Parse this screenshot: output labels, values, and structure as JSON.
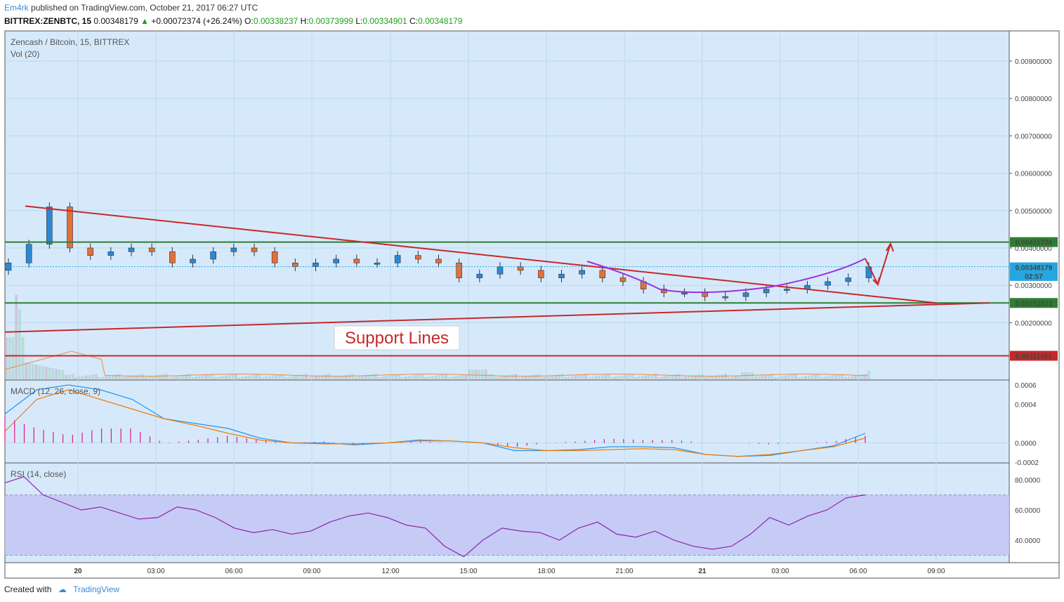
{
  "header": {
    "author": "Em4rk",
    "published_text": "published on TradingView.com, October 21, 2017 06:27 UTC",
    "symbol": "BITTREX:ZENBTC, 15",
    "last": "0.00348179",
    "change": "+0.00072374 (+26.24%)",
    "o_label": "O:",
    "o": "0.00338237",
    "h_label": "H:",
    "h": "0.00373999",
    "l_label": "L:",
    "l": "0.00334901",
    "c_label": "C:",
    "c": "0.00348179"
  },
  "main_pane": {
    "title": "Zencash / Bitcoin, 15, BITTREX",
    "vol_label": "Vol (20)",
    "annotation": "Support Lines",
    "price_labels": [
      {
        "text": "0.00415726",
        "value": 0.00415726,
        "color": "#2e7d32"
      },
      {
        "text": "0.00348179",
        "value": 0.00348179,
        "color": "#26a6e0"
      },
      {
        "text": "02:57",
        "value": 0.00325,
        "color": "#26a6e0"
      },
      {
        "text": "0.00252823",
        "value": 0.00252823,
        "color": "#2e7d32"
      },
      {
        "text": "0.00111461",
        "value": 0.00111461,
        "color": "#c62828"
      }
    ]
  },
  "macd_pane": {
    "title": "MACD (12, 26, close, 9)"
  },
  "rsi_pane": {
    "title": "RSI (14, close)"
  },
  "footer": {
    "created_with": "Created with",
    "brand": "TradingView"
  },
  "chart_data": [
    {
      "type": "candlestick",
      "title": "Zencash / Bitcoin, 15, BITTREX",
      "ylim": [
        0.001,
        0.0095
      ],
      "y_ticks": [
        "0.00900000",
        "0.00800000",
        "0.00700000",
        "0.00600000",
        "0.00500000",
        "0.00400000",
        "0.00300000",
        "0.00200000"
      ],
      "x_ticks": [
        "20",
        "03:00",
        "06:00",
        "09:00",
        "12:00",
        "15:00",
        "18:00",
        "21:00",
        "21",
        "03:00",
        "06:00",
        "09:00"
      ],
      "close_series_sampled": [
        0.0036,
        0.0041,
        0.0051,
        0.004,
        0.0038,
        0.0039,
        0.004,
        0.0039,
        0.0036,
        0.0037,
        0.0039,
        0.004,
        0.0039,
        0.0036,
        0.0035,
        0.0036,
        0.0037,
        0.0036,
        0.0036,
        0.0038,
        0.0037,
        0.0036,
        0.0032,
        0.0033,
        0.0035,
        0.0034,
        0.0032,
        0.0033,
        0.0034,
        0.0032,
        0.0031,
        0.0029,
        0.0028,
        0.0028,
        0.0027,
        0.0027,
        0.0028,
        0.0029,
        0.0029,
        0.003,
        0.0031,
        0.0032,
        0.0035
      ],
      "horizontal_levels": [
        0.00415726,
        0.00252823,
        0.00111461
      ],
      "trendline_descending": [
        [
          0,
          0.00512
        ],
        [
          1,
          0.00252823
        ]
      ],
      "trendline_ascending": [
        [
          0,
          0.00175
        ],
        [
          1,
          0.00252823
        ]
      ]
    },
    {
      "type": "line",
      "title": "MACD (12, 26, close, 9)",
      "ylim": [
        -0.0002,
        0.0006
      ],
      "y_ticks": [
        "0.0006",
        "0.0004",
        "0.0000",
        "-0.0002"
      ],
      "series": [
        {
          "values": [
            0.0003,
            0.00055,
            0.0006,
            0.00055,
            0.00045,
            0.00025,
            0.0002,
            0.00015,
            5e-05,
            0.0,
            0.0,
            -2e-05,
            0.0,
            3e-05,
            2e-05,
            0.0,
            -8e-05,
            -8e-05,
            -7e-05,
            -4e-05,
            -4e-05,
            -5e-05,
            -0.00012,
            -0.00014,
            -0.00013,
            -8e-05,
            -3e-05,
            0.0001
          ]
        },
        {
          "values": [
            0.00012,
            0.00045,
            0.00055,
            0.00045,
            0.00035,
            0.00025,
            0.00018,
            0.0001,
            3e-05,
            0.0,
            -1e-05,
            -1e-05,
            0.0,
            2e-05,
            2e-05,
            0.0,
            -5e-05,
            -8e-05,
            -8e-05,
            -7e-05,
            -6e-05,
            -7e-05,
            -0.00012,
            -0.00014,
            -0.00012,
            -8e-05,
            -4e-05,
            5e-05
          ]
        }
      ]
    },
    {
      "type": "line",
      "title": "RSI (14, close)",
      "ylim": [
        25,
        90
      ],
      "y_ticks": [
        "80.0000",
        "60.0000",
        "40.0000"
      ],
      "band": [
        30,
        70
      ],
      "series": [
        {
          "values": [
            78,
            82,
            70,
            65,
            60,
            62,
            58,
            54,
            55,
            62,
            60,
            55,
            48,
            45,
            47,
            44,
            46,
            52,
            56,
            58,
            55,
            50,
            48,
            36,
            29,
            40,
            48,
            46,
            45,
            40,
            48,
            52,
            44,
            42,
            46,
            40,
            36,
            34,
            36,
            44,
            55,
            50,
            56,
            60,
            68,
            70
          ]
        }
      ]
    }
  ]
}
